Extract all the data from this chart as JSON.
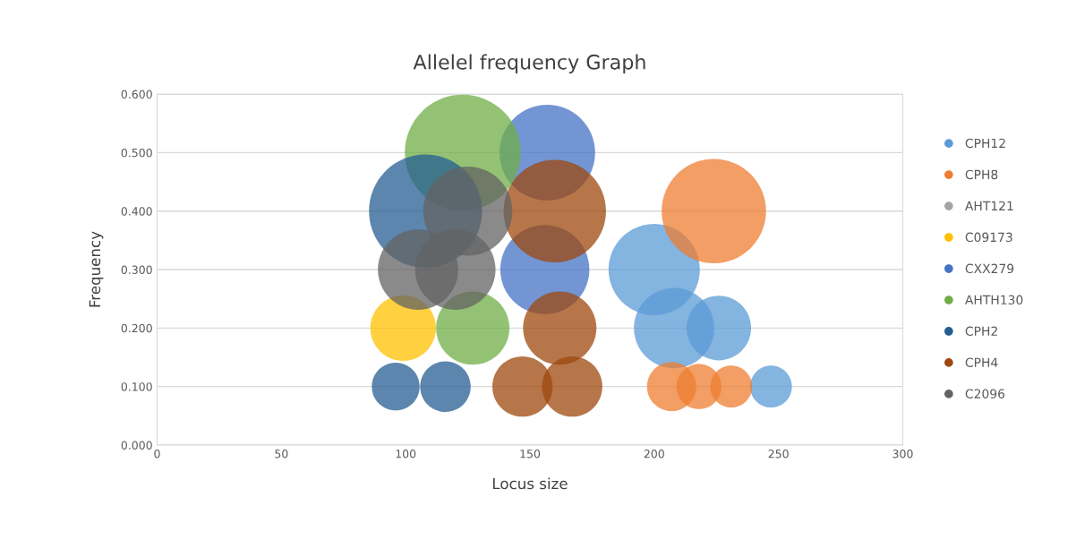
{
  "chart_data": {
    "type": "bubble",
    "title": "Allelel frequency Graph",
    "xlabel": "Locus size",
    "ylabel": "Frequency",
    "xlim": [
      0,
      300
    ],
    "xticks": [
      0,
      50,
      100,
      150,
      200,
      250,
      300
    ],
    "ylim": [
      0,
      0.6
    ],
    "yticks": [
      {
        "value": 0,
        "label": "0.000"
      },
      {
        "value": 0.1,
        "label": "0.100"
      },
      {
        "value": 0.2,
        "label": "0.200"
      },
      {
        "value": 0.3,
        "label": "0.300"
      },
      {
        "value": 0.4,
        "label": "0.400"
      },
      {
        "value": 0.5,
        "label": "0.500"
      },
      {
        "value": 0.6,
        "label": "0.600"
      }
    ],
    "grid": "y",
    "legend": "right",
    "series": [
      {
        "name": "CPH12",
        "color": "#5b9bd5",
        "x": [
          200,
          208,
          226,
          247
        ],
        "values": [
          0.3,
          0.2,
          0.2,
          0.1
        ],
        "sizes": [
          0.62,
          0.48,
          0.31,
          0.13
        ]
      },
      {
        "name": "CPH8",
        "color": "#ed7d31",
        "x": [
          224,
          207,
          218,
          231
        ],
        "values": [
          0.4,
          0.1,
          0.1,
          0.1
        ],
        "sizes": [
          0.81,
          0.18,
          0.15,
          0.13
        ]
      },
      {
        "name": "AHT121",
        "color": "#a5a5a5"
      },
      {
        "name": "C09173",
        "color": "#ffc000",
        "x": [
          99
        ],
        "values": [
          0.2
        ],
        "sizes": [
          0.32
        ]
      },
      {
        "name": "CXX279",
        "color": "#4472c4",
        "x": [
          157,
          156
        ],
        "values": [
          0.5,
          0.3
        ],
        "sizes": [
          0.68,
          0.59
        ]
      },
      {
        "name": "AHTH130",
        "color": "#70ad47",
        "x": [
          123,
          127
        ],
        "values": [
          0.5,
          0.2
        ],
        "sizes": [
          1.0,
          0.4
        ]
      },
      {
        "name": "CPH2",
        "color": "#255e91",
        "x": [
          108,
          96,
          116
        ],
        "values": [
          0.4,
          0.1,
          0.1
        ],
        "sizes": [
          0.95,
          0.17,
          0.19
        ]
      },
      {
        "name": "CPH4",
        "color": "#9e480e",
        "x": [
          160,
          162,
          147,
          167
        ],
        "values": [
          0.4,
          0.2,
          0.1,
          0.1
        ],
        "sizes": [
          0.78,
          0.4,
          0.27,
          0.27
        ]
      },
      {
        "name": "C2096",
        "color": "#636363",
        "x": [
          105,
          120,
          125
        ],
        "values": [
          0.3,
          0.3,
          0.4
        ],
        "sizes": [
          0.48,
          0.48,
          0.59
        ]
      }
    ]
  }
}
